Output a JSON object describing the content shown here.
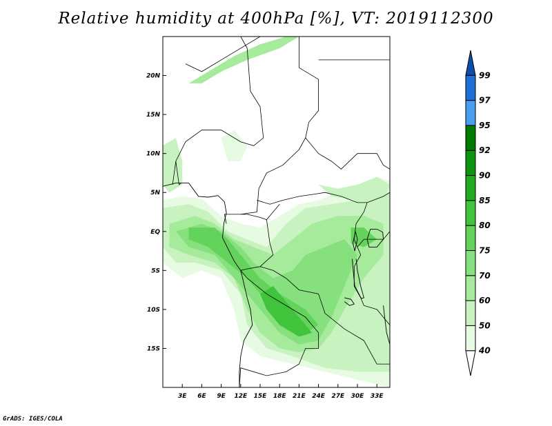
{
  "title": "Relative humidity at 400hPa [%], VT: 2019112300",
  "credit": "GrADS: IGES/COLA",
  "map": {
    "lon_range": [
      0,
      35
    ],
    "lat_range": [
      -20,
      25
    ],
    "lon_ticks": [
      {
        "value": 3,
        "label": "3E"
      },
      {
        "value": 6,
        "label": "6E"
      },
      {
        "value": 9,
        "label": "9E"
      },
      {
        "value": 12,
        "label": "12E"
      },
      {
        "value": 15,
        "label": "15E"
      },
      {
        "value": 18,
        "label": "18E"
      },
      {
        "value": 21,
        "label": "21E"
      },
      {
        "value": 24,
        "label": "24E"
      },
      {
        "value": 27,
        "label": "27E"
      },
      {
        "value": 30,
        "label": "30E"
      },
      {
        "value": 33,
        "label": "33E"
      }
    ],
    "lat_ticks": [
      {
        "value": 20,
        "label": "20N"
      },
      {
        "value": 15,
        "label": "15N"
      },
      {
        "value": 10,
        "label": "10N"
      },
      {
        "value": 5,
        "label": "5N"
      },
      {
        "value": 0,
        "label": "EQ"
      },
      {
        "value": -5,
        "label": "5S"
      },
      {
        "value": -10,
        "label": "10S"
      },
      {
        "value": -15,
        "label": "15S"
      }
    ]
  },
  "colorbar": {
    "levels": [
      "40",
      "50",
      "60",
      "70",
      "75",
      "80",
      "85",
      "90",
      "92",
      "95",
      "97",
      "99"
    ],
    "colors": [
      "#ffffff",
      "#e6fbe2",
      "#c8f3c0",
      "#a6eb9c",
      "#86e07e",
      "#63d35c",
      "#3fc43b",
      "#22ad20",
      "#0f9410",
      "#007d00",
      "#4a9ef0",
      "#1f6fd8",
      "#0a4eaa"
    ]
  },
  "humidity_regions": [
    {
      "level": 1,
      "points": [
        [
          0,
          4
        ],
        [
          3,
          4.5
        ],
        [
          6,
          4.2
        ],
        [
          9,
          2
        ],
        [
          12,
          1
        ],
        [
          15,
          0.5
        ],
        [
          18,
          2
        ],
        [
          21,
          3.5
        ],
        [
          24,
          4
        ],
        [
          27,
          5
        ],
        [
          30,
          6
        ],
        [
          33,
          7
        ],
        [
          35,
          6.5
        ],
        [
          35,
          -20
        ],
        [
          30,
          -19
        ],
        [
          25,
          -18
        ],
        [
          20,
          -17
        ],
        [
          15,
          -16
        ],
        [
          12,
          -14
        ],
        [
          11,
          -10
        ],
        [
          9,
          -6
        ],
        [
          6,
          -5
        ],
        [
          3,
          -6
        ],
        [
          0,
          -4
        ]
      ]
    },
    {
      "level": 2,
      "points": [
        [
          0,
          3
        ],
        [
          4,
          3.5
        ],
        [
          7,
          2.5
        ],
        [
          10,
          0
        ],
        [
          13,
          -1
        ],
        [
          16,
          -2
        ],
        [
          19,
          1
        ],
        [
          22,
          3
        ],
        [
          26,
          3.5
        ],
        [
          30,
          4
        ],
        [
          33,
          5
        ],
        [
          35,
          5
        ],
        [
          35,
          -18
        ],
        [
          30,
          -18
        ],
        [
          25,
          -17.5
        ],
        [
          20,
          -16
        ],
        [
          16,
          -15
        ],
        [
          13,
          -12
        ],
        [
          12,
          -8
        ],
        [
          9,
          -5
        ],
        [
          5,
          -4
        ],
        [
          2,
          -4
        ],
        [
          0,
          -2
        ]
      ]
    },
    {
      "level": 3,
      "points": [
        [
          1,
          1
        ],
        [
          5,
          2
        ],
        [
          8,
          1
        ],
        [
          11,
          -1
        ],
        [
          14,
          -2
        ],
        [
          17,
          -3
        ],
        [
          20,
          -1
        ],
        [
          23,
          1
        ],
        [
          27,
          2
        ],
        [
          31,
          2
        ],
        [
          34,
          1
        ],
        [
          34,
          -3
        ],
        [
          31,
          -6
        ],
        [
          28,
          -10
        ],
        [
          26,
          -13
        ],
        [
          24,
          -15
        ],
        [
          21,
          -15.5
        ],
        [
          18,
          -15
        ],
        [
          15,
          -13
        ],
        [
          13,
          -10
        ],
        [
          11,
          -6
        ],
        [
          8,
          -4
        ],
        [
          4,
          -3
        ],
        [
          1,
          -2
        ]
      ]
    },
    {
      "level": 4,
      "points": [
        [
          2,
          0
        ],
        [
          6,
          1
        ],
        [
          9,
          0
        ],
        [
          12,
          -2
        ],
        [
          14,
          -4
        ],
        [
          17,
          -6
        ],
        [
          20,
          -5
        ],
        [
          22,
          -3
        ],
        [
          25,
          -2
        ],
        [
          28,
          -1
        ],
        [
          30,
          -3
        ],
        [
          28,
          -7
        ],
        [
          26,
          -11
        ],
        [
          24,
          -14
        ],
        [
          21,
          -14.5
        ],
        [
          18,
          -13
        ],
        [
          15,
          -10
        ],
        [
          12,
          -7
        ],
        [
          8,
          -3
        ],
        [
          4,
          -2
        ]
      ]
    },
    {
      "level": 5,
      "points": [
        [
          4,
          0.5
        ],
        [
          8,
          0.5
        ],
        [
          10,
          -1
        ],
        [
          12,
          -3
        ],
        [
          15,
          -6
        ],
        [
          18,
          -8
        ],
        [
          20,
          -9
        ],
        [
          22,
          -10
        ],
        [
          24,
          -12
        ],
        [
          22,
          -13
        ],
        [
          19,
          -12
        ],
        [
          16,
          -9
        ],
        [
          13,
          -6
        ],
        [
          10,
          -4
        ],
        [
          7,
          -2
        ],
        [
          4,
          -1
        ]
      ]
    },
    {
      "level": 6,
      "points": [
        [
          15,
          -8
        ],
        [
          17,
          -7
        ],
        [
          19,
          -9
        ],
        [
          21,
          -11
        ],
        [
          23,
          -13
        ],
        [
          21,
          -13.5
        ],
        [
          18,
          -12
        ],
        [
          16,
          -10
        ]
      ]
    },
    {
      "level": 3,
      "points": [
        [
          4,
          19
        ],
        [
          7,
          20.5
        ],
        [
          11,
          22.5
        ],
        [
          15,
          24
        ],
        [
          19,
          25
        ],
        [
          21,
          25
        ],
        [
          18,
          23.5
        ],
        [
          13,
          22
        ],
        [
          9,
          20.5
        ],
        [
          6,
          19
        ]
      ]
    },
    {
      "level": 2,
      "points": [
        [
          0,
          11
        ],
        [
          2,
          12
        ],
        [
          3,
          9
        ],
        [
          3,
          6
        ],
        [
          1,
          5
        ],
        [
          0,
          6
        ]
      ]
    },
    {
      "level": 1,
      "points": [
        [
          9,
          12
        ],
        [
          11,
          13
        ],
        [
          13,
          11
        ],
        [
          12,
          9
        ],
        [
          10,
          9
        ]
      ]
    },
    {
      "level": 2,
      "points": [
        [
          24,
          6
        ],
        [
          27,
          5.5
        ],
        [
          30,
          6
        ],
        [
          33,
          7
        ],
        [
          35,
          6
        ],
        [
          34,
          4
        ],
        [
          30,
          4
        ],
        [
          26,
          4.5
        ]
      ]
    },
    {
      "level": 5,
      "points": [
        [
          29,
          0.5
        ],
        [
          31,
          0.5
        ],
        [
          33,
          -1
        ],
        [
          31,
          -2
        ],
        [
          29,
          -1.5
        ]
      ]
    }
  ],
  "borders": [
    [
      [
        3.5,
        21.5
      ],
      [
        6,
        20.5
      ],
      [
        10,
        22.5
      ],
      [
        13,
        24
      ],
      [
        15,
        25
      ]
    ],
    [
      [
        12,
        25
      ],
      [
        13,
        23.5
      ],
      [
        13.5,
        18
      ],
      [
        15,
        16
      ],
      [
        15.5,
        12
      ],
      [
        14,
        11
      ],
      [
        12,
        11.5
      ],
      [
        9,
        13
      ],
      [
        6,
        13
      ],
      [
        3.5,
        11.5
      ],
      [
        2,
        9
      ],
      [
        1.5,
        6
      ]
    ],
    [
      [
        2,
        9
      ],
      [
        2.5,
        6
      ],
      [
        2.8,
        6.2
      ]
    ],
    [
      [
        21,
        25
      ],
      [
        21,
        21
      ],
      [
        24,
        19.5
      ],
      [
        24,
        15.5
      ],
      [
        22.5,
        14
      ],
      [
        22,
        12
      ],
      [
        21,
        10.5
      ],
      [
        18.5,
        8.5
      ],
      [
        16,
        7.5
      ],
      [
        14.8,
        5.5
      ],
      [
        14.5,
        2.5
      ],
      [
        12,
        2.2
      ],
      [
        9.5,
        2.2
      ],
      [
        9.8,
        1
      ]
    ],
    [
      [
        14.5,
        4
      ],
      [
        16.5,
        3.5
      ],
      [
        18.5,
        4
      ],
      [
        21,
        4.5
      ],
      [
        23.5,
        4.8
      ],
      [
        25,
        5
      ],
      [
        27.5,
        4.5
      ],
      [
        30,
        3.7
      ],
      [
        31.5,
        3.7
      ],
      [
        34,
        4.5
      ],
      [
        35,
        5
      ]
    ],
    [
      [
        22,
        12
      ],
      [
        24,
        10
      ],
      [
        26,
        9
      ],
      [
        27.5,
        8
      ],
      [
        30,
        10
      ],
      [
        33,
        10
      ],
      [
        34,
        8.5
      ],
      [
        35,
        8
      ]
    ],
    [
      [
        24,
        22
      ],
      [
        35,
        22
      ]
    ],
    [
      [
        15,
        -4.5
      ],
      [
        17,
        -5
      ],
      [
        19,
        -6
      ],
      [
        21,
        -7.5
      ],
      [
        24,
        -8
      ],
      [
        25,
        -10.5
      ],
      [
        28,
        -12.5
      ],
      [
        29,
        -13
      ],
      [
        31,
        -14
      ],
      [
        33,
        -17
      ],
      [
        35,
        -17
      ]
    ],
    [
      [
        12,
        -5
      ],
      [
        13,
        -6
      ],
      [
        16,
        -8
      ],
      [
        20,
        -10
      ],
      [
        22,
        -11
      ],
      [
        24,
        -13
      ],
      [
        24,
        -15
      ],
      [
        22,
        -15
      ],
      [
        21,
        -17
      ],
      [
        19,
        -18
      ],
      [
        16,
        -18.5
      ],
      [
        12,
        -17.5
      ],
      [
        11.8,
        -20
      ]
    ],
    [
      [
        29.5,
        -1
      ],
      [
        30,
        -2
      ],
      [
        30.5,
        -3
      ],
      [
        29.5,
        -4.5
      ],
      [
        29.5,
        -7
      ],
      [
        30.5,
        -8.5
      ],
      [
        31,
        -9.5
      ],
      [
        33,
        -10
      ],
      [
        34,
        -11
      ],
      [
        35,
        -12
      ]
    ],
    [
      [
        30,
        -2
      ],
      [
        31,
        -1
      ],
      [
        34,
        -1
      ],
      [
        35,
        0
      ]
    ],
    [
      [
        29.5,
        -1
      ],
      [
        29.8,
        1
      ],
      [
        31,
        2.5
      ],
      [
        31.5,
        3.7
      ]
    ],
    [
      [
        12,
        2.2
      ],
      [
        13,
        2.2
      ],
      [
        15,
        1.8
      ],
      [
        16,
        1.5
      ],
      [
        17,
        2.5
      ],
      [
        18,
        3.5
      ]
    ],
    [
      [
        16,
        1.5
      ],
      [
        16.5,
        -1.5
      ],
      [
        17,
        -3
      ],
      [
        15,
        -4.5
      ],
      [
        13,
        -4.8
      ],
      [
        12,
        -5
      ]
    ]
  ],
  "coastlines": [
    [
      [
        0,
        5.8
      ],
      [
        2,
        6.2
      ],
      [
        4,
        6.2
      ],
      [
        5.5,
        4.5
      ],
      [
        7,
        4.4
      ],
      [
        8.5,
        4.6
      ],
      [
        9.5,
        3.8
      ],
      [
        9.8,
        2.4
      ],
      [
        9.4,
        1
      ],
      [
        9.2,
        -0.8
      ],
      [
        11,
        -3.8
      ],
      [
        12,
        -5
      ],
      [
        12.3,
        -6
      ],
      [
        13,
        -8.5
      ],
      [
        13.5,
        -10
      ],
      [
        13.8,
        -12
      ],
      [
        12.5,
        -14
      ],
      [
        12,
        -16
      ],
      [
        11.8,
        -18
      ],
      [
        11.8,
        -20
      ]
    ],
    [
      [
        31.5,
        -1
      ],
      [
        32,
        0.3
      ],
      [
        33,
        0.3
      ],
      [
        33.9,
        -0.1
      ],
      [
        34,
        -1
      ],
      [
        33,
        -2
      ],
      [
        31.8,
        -2
      ],
      [
        31.5,
        -1
      ]
    ],
    [
      [
        29.2,
        -3.5
      ],
      [
        29.4,
        -5.5
      ],
      [
        29.6,
        -7
      ],
      [
        30.6,
        -8.6
      ],
      [
        31,
        -8.5
      ],
      [
        30.5,
        -7
      ],
      [
        30,
        -5
      ],
      [
        29.8,
        -3.5
      ]
    ],
    [
      [
        34,
        -9.5
      ],
      [
        34.2,
        -11
      ],
      [
        34.5,
        -13
      ],
      [
        35,
        -14.5
      ]
    ],
    [
      [
        28,
        -8.5
      ],
      [
        29,
        -8.7
      ],
      [
        29.5,
        -9.3
      ],
      [
        28.8,
        -9.5
      ],
      [
        28,
        -9
      ]
    ],
    [
      [
        29.6,
        -2.5
      ],
      [
        29.3,
        -1.5
      ],
      [
        29.7,
        0
      ],
      [
        30,
        -1
      ],
      [
        29.6,
        -2.5
      ]
    ]
  ]
}
